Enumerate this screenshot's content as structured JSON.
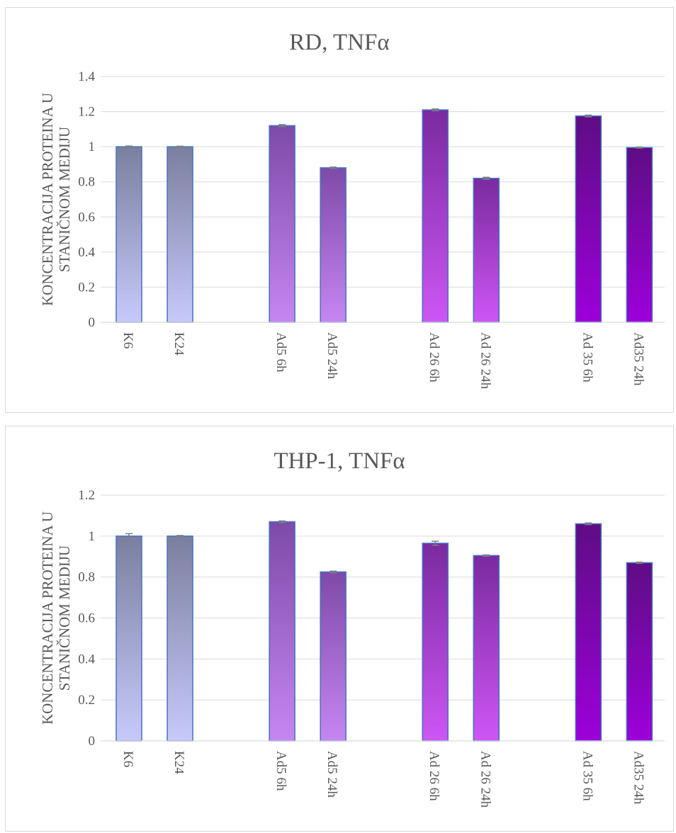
{
  "chart_data": [
    {
      "type": "bar",
      "title": "RD, TNFα",
      "ylabel": "KONCENTRACIJA PROTEINA U STANIČNOM MEDIJU",
      "ylabel_lines": [
        "KONCENTRACIJA PROTEINA U",
        "STANIČNOM MEDIJU"
      ],
      "xlabel": "",
      "ylim": [
        0,
        1.4
      ],
      "yticks": [
        "0",
        "0.2",
        "0.4",
        "0.6",
        "0.8",
        "1",
        "1.2",
        "1.4"
      ],
      "yticks_values": [
        0,
        0.2,
        0.4,
        0.6,
        0.8,
        1,
        1.2,
        1.4
      ],
      "categories": [
        "K6",
        "K24",
        "",
        "Ad5 6h",
        "Ad5 24h",
        "",
        "Ad 26 6h",
        "Ad 26 24h",
        "",
        "Ad 35 6h",
        "Ad35 24h"
      ],
      "values": [
        1.0,
        1.0,
        null,
        1.12,
        0.88,
        null,
        1.21,
        0.82,
        null,
        1.175,
        0.995
      ],
      "errors": [
        0.004,
        0.003,
        null,
        0.006,
        0.004,
        null,
        0.005,
        0.006,
        null,
        0.005,
        0.003
      ],
      "grid": true,
      "legend": "none"
    },
    {
      "type": "bar",
      "title": "THP-1, TNFα",
      "ylabel": "KONCENTRACIJA PROTEINA U STANIČNOM MEDIJU",
      "ylabel_lines": [
        "KONCENTRACIJA PROTEINA U",
        "STANIČNOM MEDIJU"
      ],
      "xlabel": "",
      "ylim": [
        0,
        1.2
      ],
      "yticks": [
        "0",
        "0.2",
        "0.4",
        "0.6",
        "0.8",
        "1",
        "1.2"
      ],
      "yticks_values": [
        0,
        0.2,
        0.4,
        0.6,
        0.8,
        1,
        1.2
      ],
      "categories": [
        "K6",
        "K24",
        "",
        "Ad5 6h",
        "Ad5 24h",
        "",
        "Ad 26 6h",
        "Ad 26 24h",
        "",
        "Ad 35 6h",
        "Ad35 24h"
      ],
      "values": [
        1.0,
        1.0,
        null,
        1.07,
        0.825,
        null,
        0.965,
        0.905,
        null,
        1.06,
        0.87
      ],
      "errors": [
        0.012,
        0.003,
        null,
        0.004,
        0.004,
        null,
        0.01,
        0.003,
        null,
        0.004,
        0.003
      ],
      "grid": true,
      "legend": "none"
    }
  ],
  "colors": {
    "bar_outline": "#4472c4",
    "error_bar": "#7f7f7f",
    "gridline": "#d9d9d9",
    "text": "#595959",
    "gradients": [
      {
        "top": "#7b7f9e",
        "bottom": "#c7c9fb"
      },
      {
        "top": "#7b7f9e",
        "bottom": "#c7c9fb"
      },
      null,
      {
        "top": "#7e4aa8",
        "bottom": "#c586f2"
      },
      {
        "top": "#7e4aa8",
        "bottom": "#c586f2"
      },
      null,
      {
        "top": "#7a2aa0",
        "bottom": "#cd56f4"
      },
      {
        "top": "#7a2aa0",
        "bottom": "#cd56f4"
      },
      null,
      {
        "top": "#5e0d84",
        "bottom": "#9d00db"
      },
      {
        "top": "#5e0d84",
        "bottom": "#9d00db"
      }
    ]
  }
}
